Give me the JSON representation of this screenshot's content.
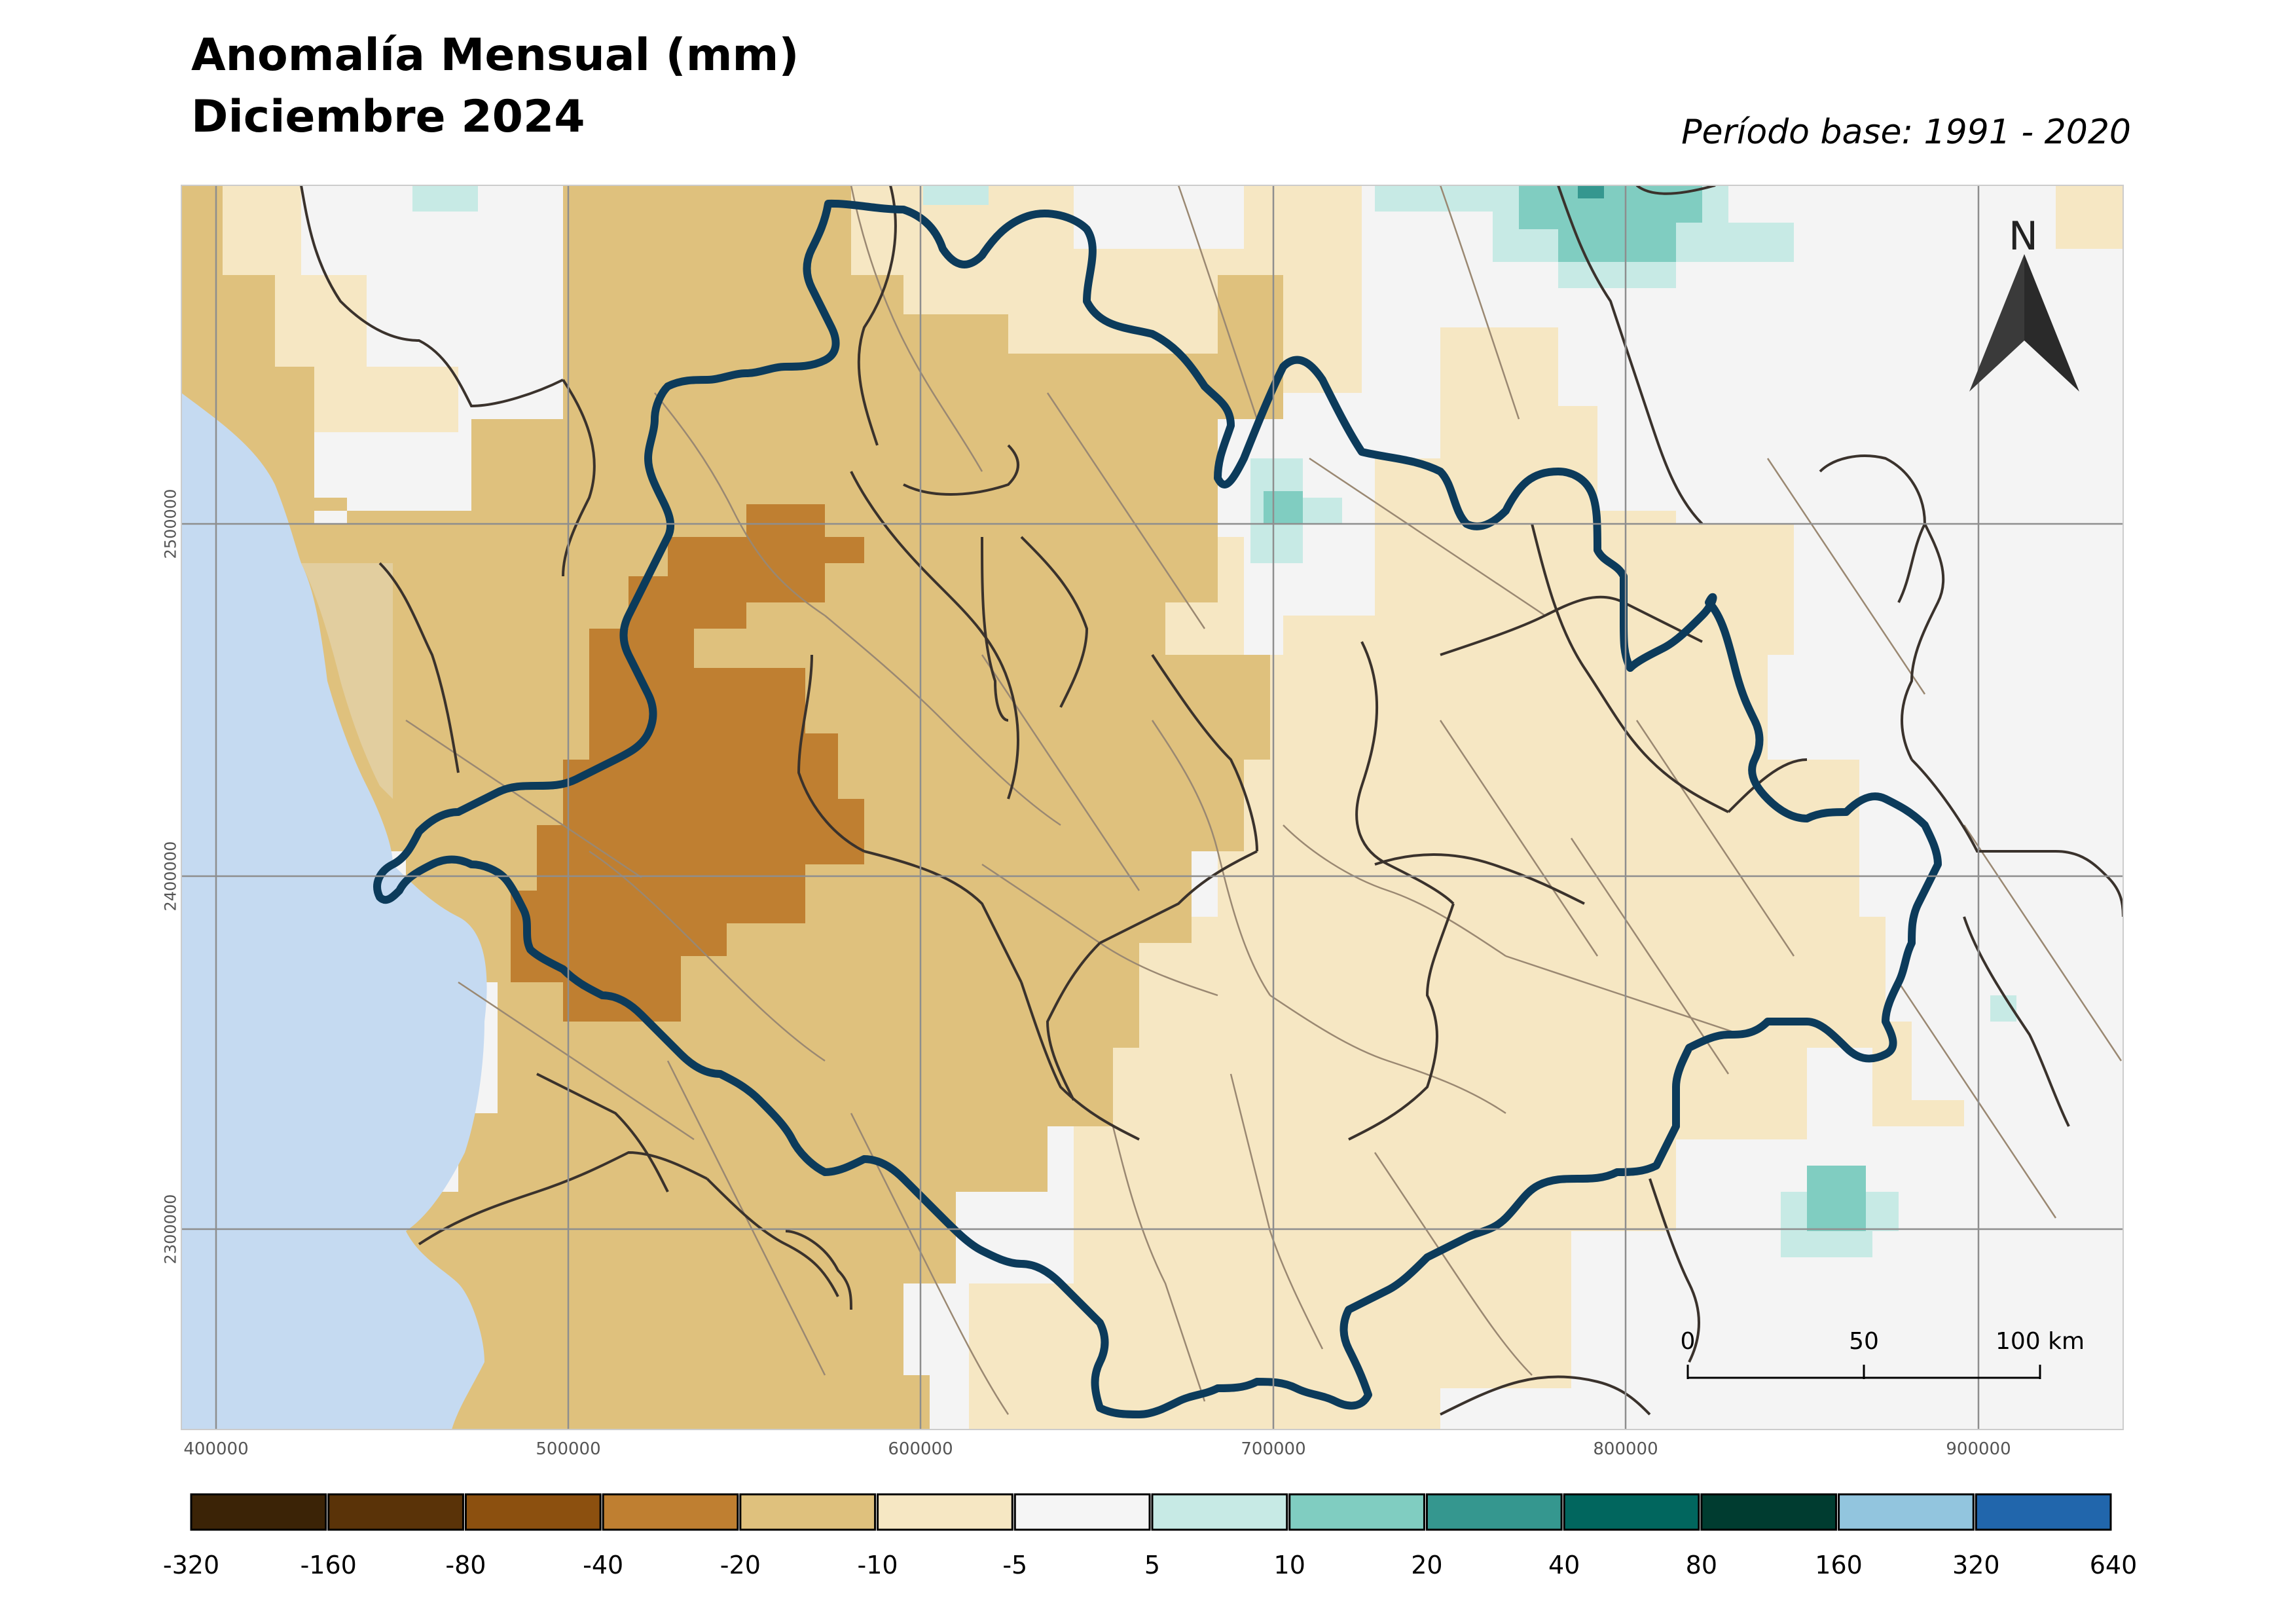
{
  "title_line1": "Anomalía Mensual (mm)",
  "title_line2": "Diciembre 2024",
  "base_period": "Período base: 1991 - 2020",
  "north_label": "N",
  "x_ticks": [
    "400000",
    "500000",
    "600000",
    "700000",
    "800000",
    "900000"
  ],
  "y_ticks": [
    "2500000",
    "2400000",
    "2300000"
  ],
  "scale_bar": {
    "labels": [
      "0",
      "50",
      "100 km"
    ]
  },
  "legend": {
    "labels": [
      "-320",
      "-160",
      "-80",
      "-40",
      "-20",
      "-10",
      "-5",
      "5",
      "10",
      "20",
      "40",
      "80",
      "160",
      "320",
      "640"
    ],
    "colors": [
      "#3b2306",
      "#5a3308",
      "#8c500f",
      "#bf7f31",
      "#dfc17d",
      "#f6e7c3",
      "#f5f5f5",
      "#c7eae5",
      "#80cdc1",
      "#35978f",
      "#01665e",
      "#003c30",
      "#92c5de",
      "#2166ac"
    ]
  },
  "colors": {
    "outline": "#0c3b5b",
    "state_border": "#3a322c",
    "municipal_border": "#9a8872",
    "ocean": "#c5daf1",
    "grid": "#8e8e8e"
  }
}
